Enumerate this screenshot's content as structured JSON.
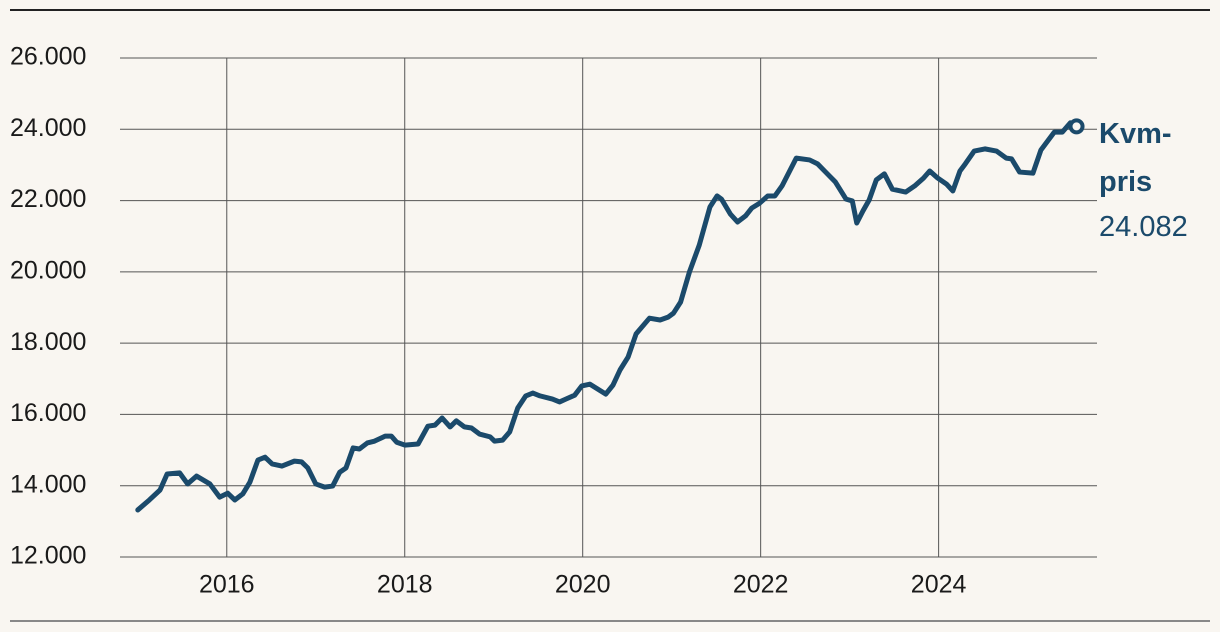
{
  "chart_data": {
    "type": "line",
    "x": [
      2015.0,
      2015.13,
      2015.25,
      2015.33,
      2015.47,
      2015.56,
      2015.66,
      2015.81,
      2015.92,
      2016.01,
      2016.09,
      2016.18,
      2016.26,
      2016.35,
      2016.43,
      2016.51,
      2016.62,
      2016.76,
      2016.84,
      2016.91,
      2017.0,
      2017.1,
      2017.19,
      2017.27,
      2017.34,
      2017.42,
      2017.49,
      2017.58,
      2017.66,
      2017.78,
      2017.85,
      2017.91,
      2018.0,
      2018.15,
      2018.26,
      2018.34,
      2018.42,
      2018.51,
      2018.58,
      2018.67,
      2018.75,
      2018.84,
      2018.96,
      2019.01,
      2019.1,
      2019.18,
      2019.27,
      2019.36,
      2019.44,
      2019.52,
      2019.66,
      2019.74,
      2019.81,
      2019.91,
      2019.99,
      2020.08,
      2020.17,
      2020.26,
      2020.34,
      2020.42,
      2020.51,
      2020.6,
      2020.75,
      2020.87,
      2020.96,
      2021.02,
      2021.1,
      2021.2,
      2021.31,
      2021.43,
      2021.51,
      2021.56,
      2021.66,
      2021.74,
      2021.83,
      2021.9,
      2021.99,
      2022.08,
      2022.16,
      2022.24,
      2022.4,
      2022.55,
      2022.64,
      2022.73,
      2022.84,
      2022.96,
      2023.03,
      2023.08,
      2023.15,
      2023.22,
      2023.3,
      2023.39,
      2023.48,
      2023.63,
      2023.73,
      2023.83,
      2023.9,
      2023.99,
      2024.09,
      2024.16,
      2024.24,
      2024.3,
      2024.4,
      2024.52,
      2024.65,
      2024.76,
      2024.82,
      2024.91,
      2025.06,
      2025.15,
      2025.3,
      2025.39,
      2025.48,
      2025.55
    ],
    "series": [
      {
        "name": "Kvm-pris",
        "color": "#1b4a6b",
        "values": [
          13320,
          13600,
          13880,
          14330,
          14360,
          14050,
          14270,
          14050,
          13680,
          13790,
          13600,
          13770,
          14100,
          14720,
          14800,
          14610,
          14550,
          14690,
          14670,
          14500,
          14050,
          13960,
          13990,
          14380,
          14500,
          15060,
          15030,
          15200,
          15250,
          15390,
          15390,
          15220,
          15140,
          15170,
          15670,
          15700,
          15900,
          15650,
          15820,
          15650,
          15620,
          15450,
          15370,
          15250,
          15280,
          15510,
          16180,
          16520,
          16600,
          16520,
          16430,
          16350,
          16430,
          16540,
          16800,
          16850,
          16710,
          16570,
          16820,
          17250,
          17610,
          18260,
          18700,
          18650,
          18730,
          18840,
          19150,
          20000,
          20750,
          21820,
          22130,
          22040,
          21620,
          21400,
          21570,
          21790,
          21930,
          22130,
          22130,
          22410,
          23190,
          23140,
          23030,
          22800,
          22520,
          22040,
          21990,
          21370,
          21710,
          22020,
          22580,
          22750,
          22320,
          22240,
          22410,
          22630,
          22830,
          22630,
          22460,
          22270,
          22830,
          23030,
          23390,
          23450,
          23390,
          23190,
          23170,
          22800,
          22770,
          23420,
          23920,
          23920,
          24180,
          24082
        ],
        "value_labels": [
          null,
          null,
          null,
          null,
          null,
          null,
          null,
          null,
          null,
          null,
          null,
          null,
          null,
          null,
          null,
          null,
          null,
          null,
          null,
          null,
          null,
          null,
          null,
          null,
          null,
          null,
          null,
          null,
          null,
          null,
          null,
          null,
          null,
          null,
          null,
          null,
          null,
          null,
          null,
          null,
          null,
          null,
          null,
          null,
          null,
          null,
          null,
          null,
          null,
          null,
          null,
          null,
          null,
          null,
          null,
          null,
          null,
          null,
          null,
          null,
          null,
          null,
          null,
          null,
          null,
          null,
          null,
          null,
          null,
          null,
          null,
          null,
          null,
          null,
          null,
          null,
          null,
          null,
          null,
          null,
          null,
          null,
          null,
          null,
          null,
          null,
          null,
          null,
          null,
          null,
          null,
          null,
          null,
          null,
          null,
          null,
          null,
          null,
          null,
          null,
          null,
          null,
          null,
          null,
          null,
          null,
          null,
          null,
          null,
          null,
          null,
          null,
          null,
          "24.082"
        ]
      }
    ],
    "xlim": [
      2014.8,
      2025.78
    ],
    "xticks": [
      2016,
      2018,
      2020,
      2022,
      2024
    ],
    "ylim": [
      12000,
      26000
    ],
    "yticks": [
      {
        "value": 12000,
        "label": "12.000"
      },
      {
        "value": 14000,
        "label": "14.000"
      },
      {
        "value": 16000,
        "label": "16.000"
      },
      {
        "value": 18000,
        "label": "18.000"
      },
      {
        "value": 20000,
        "label": "20.000"
      },
      {
        "value": 22000,
        "label": "22.000"
      },
      {
        "value": 24000,
        "label": "24.000"
      },
      {
        "value": 26000,
        "label": "26.000"
      }
    ],
    "grid": true
  }
}
